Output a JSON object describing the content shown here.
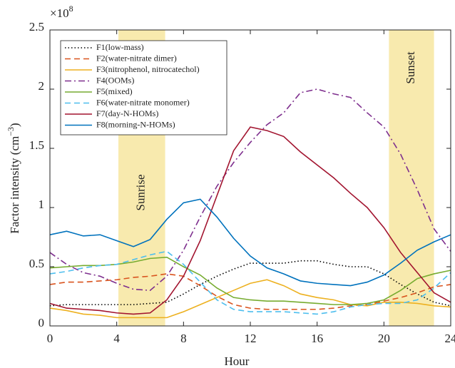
{
  "chart_data": {
    "type": "line",
    "x_label": "Hour",
    "y_label": {
      "text": "Factor intensity (cm",
      "sup": "−3",
      "suffix": ")"
    },
    "y_multiplier": {
      "base": "×10",
      "sup": "8"
    },
    "x": [
      0,
      1,
      2,
      3,
      4,
      5,
      6,
      7,
      8,
      9,
      10,
      11,
      12,
      13,
      14,
      15,
      16,
      17,
      18,
      19,
      20,
      21,
      22,
      23,
      24
    ],
    "xlim": [
      0,
      24
    ],
    "xticks": [
      0,
      4,
      8,
      12,
      16,
      20,
      24
    ],
    "ylim": [
      0,
      2.5
    ],
    "yticks": [
      0,
      0.5,
      1,
      1.5,
      2,
      2.5
    ],
    "grid": false,
    "legend": "upper left",
    "shaded_regions": [
      {
        "label": "Sunrise",
        "xlim": [
          4.1,
          6.9
        ],
        "color": "#f8eaae"
      },
      {
        "label": "Sunset",
        "xlim": [
          20.3,
          23.0
        ],
        "color": "#f8eaae"
      }
    ],
    "series": [
      {
        "name": "F1(low-mass)",
        "color": "#000000",
        "dash": "dotted",
        "values": [
          0.17,
          0.18,
          0.18,
          0.18,
          0.18,
          0.18,
          0.19,
          0.2,
          0.27,
          0.35,
          0.42,
          0.48,
          0.53,
          0.53,
          0.53,
          0.55,
          0.55,
          0.52,
          0.5,
          0.5,
          0.44,
          0.35,
          0.27,
          0.2,
          0.17
        ]
      },
      {
        "name": "F2(water-nitrate dimer)",
        "color": "#d9531e",
        "dash": "dashed",
        "values": [
          0.35,
          0.37,
          0.37,
          0.38,
          0.39,
          0.41,
          0.42,
          0.44,
          0.42,
          0.34,
          0.25,
          0.18,
          0.15,
          0.14,
          0.14,
          0.14,
          0.14,
          0.15,
          0.17,
          0.18,
          0.21,
          0.24,
          0.28,
          0.33,
          0.35
        ]
      },
      {
        "name": "F3(nitrophenol, nitrocatechol)",
        "color": "#edb120",
        "dash": "solid",
        "values": [
          0.15,
          0.13,
          0.1,
          0.09,
          0.07,
          0.07,
          0.07,
          0.07,
          0.12,
          0.18,
          0.24,
          0.3,
          0.36,
          0.39,
          0.34,
          0.27,
          0.24,
          0.22,
          0.18,
          0.17,
          0.2,
          0.2,
          0.19,
          0.17,
          0.16
        ]
      },
      {
        "name": "F4(OOMs)",
        "color": "#7e2f8e",
        "dash": "dashdot",
        "values": [
          0.62,
          0.52,
          0.45,
          0.42,
          0.36,
          0.31,
          0.3,
          0.42,
          0.64,
          0.92,
          1.18,
          1.38,
          1.55,
          1.7,
          1.8,
          1.97,
          2.0,
          1.96,
          1.93,
          1.8,
          1.68,
          1.45,
          1.15,
          0.82,
          0.63
        ]
      },
      {
        "name": "F5(mixed)",
        "color": "#77ac30",
        "dash": "solid",
        "values": [
          0.49,
          0.5,
          0.51,
          0.51,
          0.52,
          0.54,
          0.57,
          0.58,
          0.5,
          0.43,
          0.32,
          0.24,
          0.22,
          0.21,
          0.21,
          0.2,
          0.19,
          0.18,
          0.18,
          0.19,
          0.22,
          0.3,
          0.4,
          0.44,
          0.47
        ]
      },
      {
        "name": "F6(water-nitrate monomer)",
        "color": "#4dbeee",
        "dash": "dashed",
        "values": [
          0.44,
          0.46,
          0.49,
          0.51,
          0.52,
          0.56,
          0.6,
          0.63,
          0.52,
          0.37,
          0.22,
          0.14,
          0.12,
          0.12,
          0.12,
          0.11,
          0.1,
          0.12,
          0.16,
          0.18,
          0.19,
          0.19,
          0.22,
          0.32,
          0.45
        ]
      },
      {
        "name": "F7(day-N-HOMs)",
        "color": "#a2142f",
        "dash": "solid",
        "values": [
          0.19,
          0.15,
          0.14,
          0.13,
          0.11,
          0.1,
          0.11,
          0.22,
          0.42,
          0.72,
          1.1,
          1.48,
          1.68,
          1.65,
          1.6,
          1.47,
          1.36,
          1.25,
          1.12,
          1.0,
          0.83,
          0.62,
          0.45,
          0.28,
          0.2
        ]
      },
      {
        "name": "F8(morning-N-HOMs)",
        "color": "#0072bd",
        "dash": "solid",
        "values": [
          0.77,
          0.8,
          0.76,
          0.77,
          0.72,
          0.67,
          0.73,
          0.9,
          1.04,
          1.07,
          0.92,
          0.74,
          0.59,
          0.49,
          0.44,
          0.38,
          0.36,
          0.35,
          0.34,
          0.37,
          0.43,
          0.53,
          0.64,
          0.71,
          0.77
        ]
      }
    ]
  }
}
